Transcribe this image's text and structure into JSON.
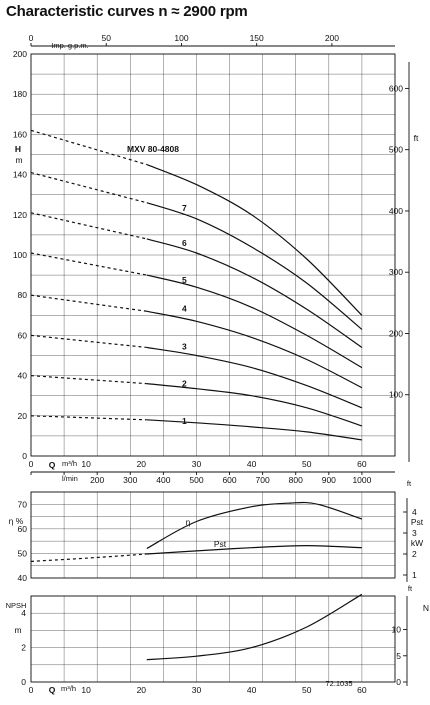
{
  "title": "Characteristic curves n ≈ 2900 rpm",
  "top_chart": {
    "model_label": "MXV 80-4808",
    "y_axis": {
      "label": "H",
      "unit": "m",
      "ticks": [
        "0",
        "20",
        "40",
        "60",
        "80",
        "100",
        "120",
        "140",
        "160",
        "180",
        "200"
      ]
    },
    "right_axis_ft": {
      "unit": "ft",
      "ticks": [
        "100",
        "200",
        "300",
        "400",
        "500",
        "600"
      ]
    },
    "top_axis_gpm": {
      "label": "Imp. g.p.m.",
      "ticks": [
        "0",
        "50",
        "100",
        "150",
        "200"
      ]
    },
    "bottom_axis_m3h": {
      "label": "Q",
      "unit": "m³/h",
      "ticks": [
        "0",
        "10",
        "20",
        "30",
        "40",
        "50",
        "60"
      ]
    },
    "bottom_axis_lmin": {
      "unit": "l/min",
      "ticks": [
        "0",
        "100",
        "200",
        "300",
        "400",
        "500",
        "600",
        "700",
        "800",
        "900",
        "1000"
      ]
    },
    "stage_labels": [
      "1",
      "2",
      "3",
      "4",
      "5",
      "6",
      "7"
    ]
  },
  "middle_chart": {
    "eta_label": "η %",
    "eta_ticks": [
      "40",
      "50",
      "60",
      "70"
    ],
    "right_label": "Pst",
    "right_unit": "kW",
    "right_ticks": [
      "1",
      "2",
      "3",
      "4"
    ],
    "curve_labels": {
      "eta": "η",
      "pst": "Pst"
    },
    "ft_corner": "ft"
  },
  "bottom_chart": {
    "y_label": "NPSH",
    "y_unit": "m",
    "y_ticks": [
      "0",
      "2",
      "4"
    ],
    "right_unit": "ft",
    "right_ticks": [
      "0",
      "5",
      "10"
    ],
    "right_corner_left": "N",
    "x_label": "Q",
    "x_unit": "m³/h",
    "x_ticks": [
      "0",
      "10",
      "20",
      "30",
      "40",
      "50",
      "60"
    ],
    "code": "72.1035"
  },
  "chart_data": [
    {
      "type": "line",
      "title": "Characteristic curves n ≈ 2900 rpm",
      "xlabel": "Q m³/h",
      "ylabel": "H m",
      "xlim": [
        0,
        60
      ],
      "ylim": [
        0,
        200
      ],
      "series": [
        {
          "name": "1",
          "x": [
            0,
            21,
            30,
            40,
            50,
            60
          ],
          "y": [
            20,
            18,
            16.5,
            14.5,
            12,
            8
          ]
        },
        {
          "name": "2",
          "x": [
            0,
            21,
            30,
            40,
            50,
            60
          ],
          "y": [
            40,
            36,
            33.5,
            30,
            24,
            15
          ]
        },
        {
          "name": "3",
          "x": [
            0,
            21,
            30,
            40,
            50,
            60
          ],
          "y": [
            60,
            54,
            50,
            44,
            35,
            24
          ]
        },
        {
          "name": "4",
          "x": [
            0,
            21,
            30,
            40,
            50,
            60
          ],
          "y": [
            80,
            72,
            67,
            59,
            48,
            34
          ]
        },
        {
          "name": "5",
          "x": [
            0,
            21,
            30,
            40,
            50,
            60
          ],
          "y": [
            101,
            90,
            84,
            74,
            60,
            44
          ]
        },
        {
          "name": "6",
          "x": [
            0,
            21,
            30,
            40,
            50,
            60
          ],
          "y": [
            121,
            108,
            101,
            89,
            73,
            54
          ]
        },
        {
          "name": "7",
          "x": [
            0,
            21,
            30,
            40,
            50,
            60
          ],
          "y": [
            141,
            126,
            118,
            104,
            86,
            63
          ]
        },
        {
          "name": "MXV 80-4808",
          "x": [
            0,
            21,
            30,
            40,
            50,
            60
          ],
          "y": [
            162,
            145,
            135,
            120,
            98,
            70
          ]
        }
      ],
      "dashed_range_x": [
        0,
        21
      ]
    },
    {
      "type": "line",
      "ylabel": "η %",
      "ylim": [
        40,
        75
      ],
      "xlim": [
        0,
        60
      ],
      "series": [
        {
          "name": "η",
          "x": [
            21,
            30,
            40,
            47,
            52,
            60
          ],
          "y": [
            52,
            63,
            69,
            70.5,
            70,
            64
          ]
        },
        {
          "name": "Pst",
          "x": [
            0,
            10,
            21,
            30,
            40,
            50,
            60
          ],
          "y": [
            1.65,
            1.8,
            2.0,
            2.15,
            2.3,
            2.4,
            2.3
          ]
        }
      ]
    },
    {
      "type": "line",
      "ylabel": "NPSH m",
      "ylim": [
        0,
        5
      ],
      "xlim": [
        0,
        60
      ],
      "series": [
        {
          "name": "NPSH",
          "x": [
            21,
            30,
            40,
            50,
            60
          ],
          "y": [
            1.3,
            1.5,
            2.0,
            3.2,
            5.1
          ]
        }
      ]
    }
  ]
}
